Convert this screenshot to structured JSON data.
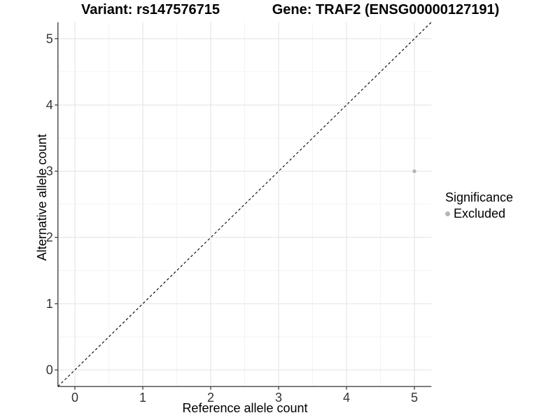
{
  "titles": {
    "left": "Variant: rs147576715",
    "right": "Gene: TRAF2 (ENSG00000127191)"
  },
  "chart_data": {
    "type": "scatter",
    "title_left": "Variant: rs147576715",
    "title_right": "Gene: TRAF2 (ENSG00000127191)",
    "xlabel": "Reference allele count",
    "ylabel": "Alternative allele count",
    "xlim": [
      -0.25,
      5.25
    ],
    "ylim": [
      -0.25,
      5.25
    ],
    "x_ticks": [
      0,
      1,
      2,
      3,
      4,
      5
    ],
    "y_ticks": [
      0,
      1,
      2,
      3,
      4,
      5
    ],
    "grid": {
      "major": true,
      "minor": true
    },
    "points": [
      {
        "x": 5,
        "y": 3,
        "significance": "Excluded"
      }
    ],
    "identity_line": {
      "slope": 1,
      "intercept": 0,
      "style": "dashed",
      "color": "#000000"
    },
    "legend": {
      "title": "Significance",
      "position": "right",
      "entries": [
        {
          "label": "Excluded",
          "color": "#b5b5b5",
          "marker": "circle"
        }
      ]
    },
    "colors": {
      "point_excluded": "#b5b5b5",
      "grid_major": "#e7e7e7",
      "grid_minor": "#f2f2f2",
      "axis_line": "#464646",
      "tick_text": "#333333",
      "background": "#ffffff"
    }
  }
}
